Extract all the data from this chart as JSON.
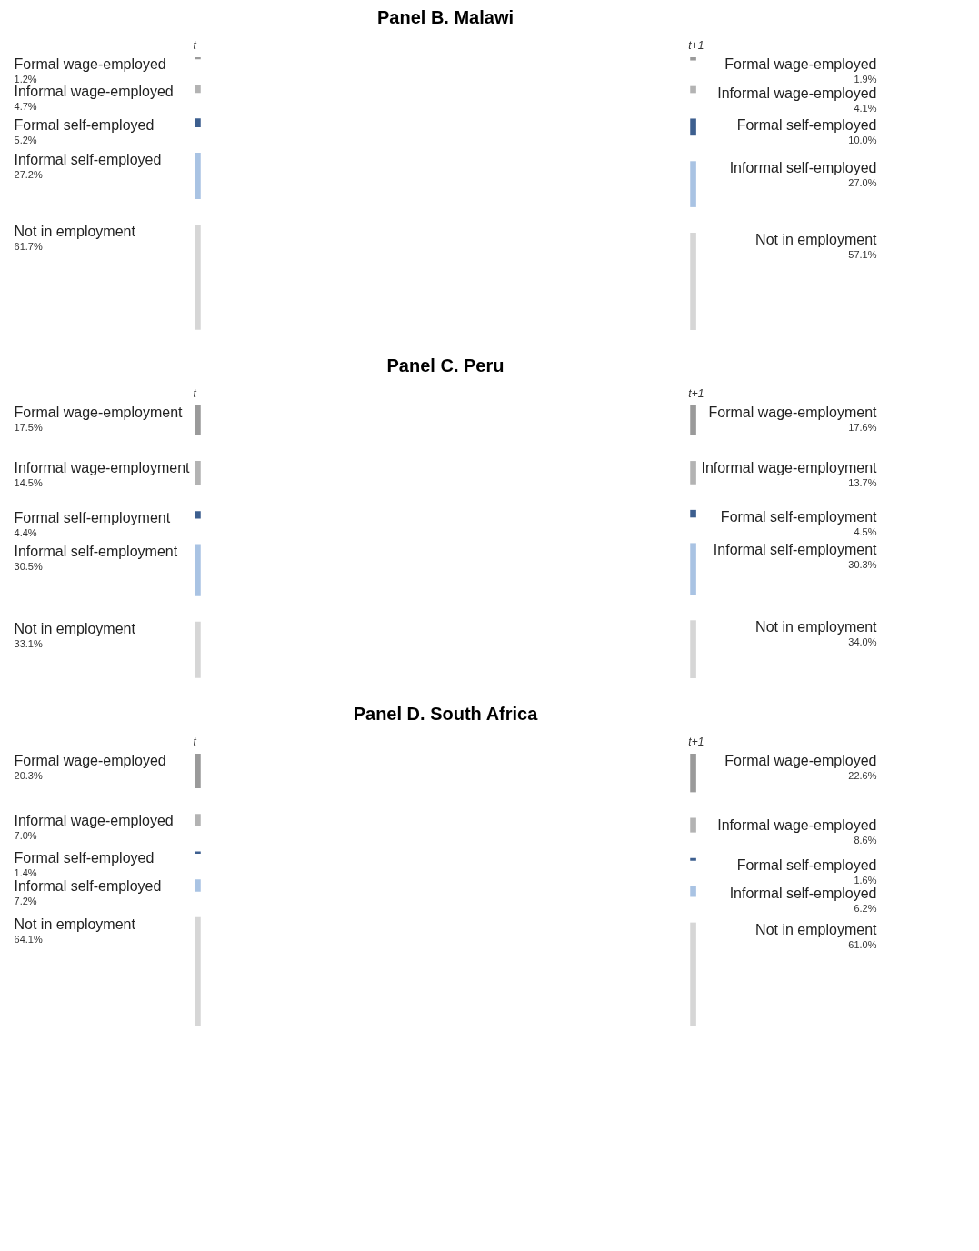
{
  "chart_data": [
    {
      "type": "other",
      "title": "Panel B. Malawi",
      "categories": [
        "Formal wage-employed",
        "Informal wage-employed",
        "Formal self-employed",
        "Informal self-employed",
        "Not in employment"
      ],
      "colors": [
        "#9a9a9a",
        "#b3b3b3",
        "#3d5f8f",
        "#a9c3e3",
        "#d6d6d6"
      ],
      "series": [
        {
          "name": "t",
          "values": [
            1.2,
            4.7,
            5.2,
            27.2,
            61.7
          ],
          "value_labels": [
            "1.2%",
            "4.7%",
            "5.2%",
            "27.2%",
            "61.7%"
          ]
        },
        {
          "name": "t+1",
          "values": [
            1.9,
            4.1,
            10.0,
            27.0,
            57.1
          ],
          "value_labels": [
            "1.9%",
            "4.1%",
            "10.0%",
            "27.0%",
            "57.1%"
          ]
        }
      ]
    },
    {
      "type": "other",
      "title": "Panel C. Peru",
      "categories": [
        "Formal wage-employment",
        "Informal wage-employment",
        "Formal self-employment",
        "Informal self-employment",
        "Not in employment"
      ],
      "colors": [
        "#9a9a9a",
        "#b3b3b3",
        "#3d5f8f",
        "#a9c3e3",
        "#d6d6d6"
      ],
      "series": [
        {
          "name": "t",
          "values": [
            17.5,
            14.5,
            4.4,
            30.5,
            33.1
          ],
          "value_labels": [
            "17.5%",
            "14.5%",
            "4.4%",
            "30.5%",
            "33.1%"
          ]
        },
        {
          "name": "t+1",
          "values": [
            17.6,
            13.7,
            4.5,
            30.3,
            34.0
          ],
          "value_labels": [
            "17.6%",
            "13.7%",
            "4.5%",
            "30.3%",
            "34.0%"
          ]
        }
      ]
    },
    {
      "type": "other",
      "title": "Panel D. South Africa",
      "categories": [
        "Formal wage-employed",
        "Informal wage-employed",
        "Formal self-employed",
        "Informal self-employed",
        "Not in employment"
      ],
      "colors": [
        "#9a9a9a",
        "#b3b3b3",
        "#3d5f8f",
        "#a9c3e3",
        "#d6d6d6"
      ],
      "series": [
        {
          "name": "t",
          "values": [
            20.3,
            7.0,
            1.4,
            7.2,
            64.1
          ],
          "value_labels": [
            "20.3%",
            "7.0%",
            "1.4%",
            "7.2%",
            "64.1%"
          ]
        },
        {
          "name": "t+1",
          "values": [
            22.6,
            8.6,
            1.6,
            6.2,
            61.0
          ],
          "value_labels": [
            "22.6%",
            "8.6%",
            "1.6%",
            "6.2%",
            "61.0%"
          ]
        }
      ]
    }
  ]
}
